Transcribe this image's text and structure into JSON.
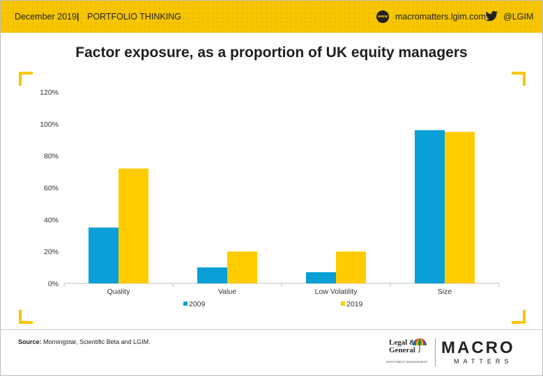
{
  "header": {
    "date": "December 2019",
    "separator": "|",
    "section": "PORTFOLIO THINKING",
    "website_icon_text": "www",
    "website": "macromatters.lgim.com",
    "twitter_handle": "@LGIM",
    "background_color": "#f7c600"
  },
  "chart_data": {
    "type": "bar",
    "title": "Factor exposure, as a proportion of UK equity managers",
    "categories": [
      "Quality",
      "Value",
      "Low Volatility",
      "Size"
    ],
    "series": [
      {
        "name": "2009",
        "values": [
          35,
          10,
          7,
          96
        ],
        "color": "#0a9fd6"
      },
      {
        "name": "2019",
        "values": [
          72,
          20,
          20,
          95
        ],
        "color": "#ffcc00"
      }
    ],
    "ylim": [
      0,
      120
    ],
    "yticks": [
      "0%",
      "20%",
      "40%",
      "60%",
      "80%",
      "100%",
      "120%"
    ],
    "ytick_values": [
      0,
      20,
      40,
      60,
      80,
      100,
      120
    ],
    "xlabel": "",
    "ylabel": "",
    "grid": false,
    "legend": "bottom-center"
  },
  "footer": {
    "source_label": "Source:",
    "source_text": "Morningstar, Scientific Beta and LGIM.",
    "lg_line1": "Legal &",
    "lg_line2": "General",
    "lg_sub": "INVESTMENT MANAGEMENT",
    "macro": "MACRO",
    "matters": "MATTERS"
  }
}
